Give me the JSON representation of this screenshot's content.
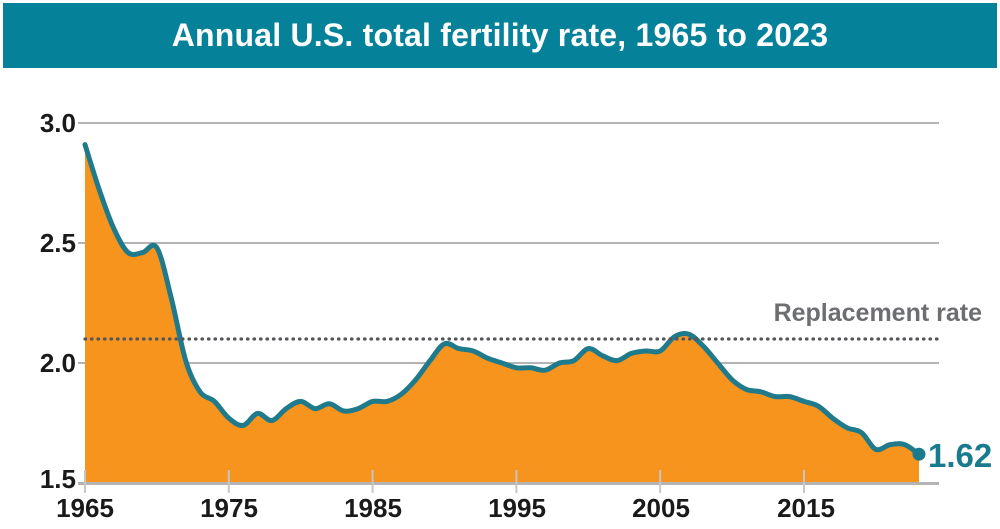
{
  "title": "Annual U.S. total fertility rate, 1965 to 2023",
  "colors": {
    "banner_teal": "#05829A",
    "line_teal": "#1F7A8B",
    "area_orange": "#F7941E",
    "grid_gray": "#B4B4B4",
    "tick_gray": "#C6C6C6",
    "dotted_gray": "#55565A",
    "label_gray": "#6D6E71",
    "axis_text": "#1A1A1A",
    "end_label_teal": "#1B7B8E"
  },
  "chart_data": {
    "type": "area",
    "title": "Annual U.S. total fertility rate, 1965 to 2023",
    "xlabel": "",
    "ylabel": "",
    "grid": true,
    "legend": false,
    "xlim": [
      1965,
      2023
    ],
    "ylim": [
      1.5,
      3.0
    ],
    "x": [
      1965,
      1966,
      1967,
      1968,
      1969,
      1970,
      1971,
      1972,
      1973,
      1974,
      1975,
      1976,
      1977,
      1978,
      1979,
      1980,
      1981,
      1982,
      1983,
      1984,
      1985,
      1986,
      1987,
      1988,
      1989,
      1990,
      1991,
      1992,
      1993,
      1994,
      1995,
      1996,
      1997,
      1998,
      1999,
      2000,
      2001,
      2002,
      2003,
      2004,
      2005,
      2006,
      2007,
      2008,
      2009,
      2010,
      2011,
      2012,
      2013,
      2014,
      2015,
      2016,
      2017,
      2018,
      2019,
      2020,
      2021,
      2022,
      2023
    ],
    "values": [
      2.91,
      2.72,
      2.56,
      2.46,
      2.46,
      2.48,
      2.27,
      2.01,
      1.88,
      1.84,
      1.77,
      1.74,
      1.79,
      1.76,
      1.81,
      1.84,
      1.81,
      1.83,
      1.8,
      1.81,
      1.84,
      1.84,
      1.87,
      1.93,
      2.01,
      2.08,
      2.06,
      2.05,
      2.02,
      2.0,
      1.98,
      1.98,
      1.97,
      2.0,
      2.01,
      2.06,
      2.03,
      2.01,
      2.04,
      2.05,
      2.05,
      2.11,
      2.12,
      2.07,
      2.0,
      1.93,
      1.89,
      1.88,
      1.86,
      1.86,
      1.84,
      1.82,
      1.77,
      1.73,
      1.71,
      1.64,
      1.66,
      1.66,
      1.62
    ],
    "yticks": [
      3.0,
      2.5,
      2.0,
      1.5
    ],
    "ytick_labels": [
      "3.0",
      "2.5",
      "2.0",
      "1.5"
    ],
    "xticks": [
      1965,
      1975,
      1985,
      1995,
      2005,
      2015
    ],
    "xtick_labels": [
      "1965",
      "1975",
      "1985",
      "1995",
      "2005",
      "2015"
    ],
    "annotations": {
      "replacement_rate": {
        "label": "Replacement rate",
        "value": 2.1
      },
      "end_value": {
        "label": "1.62",
        "value": 1.62,
        "year": 2023
      }
    }
  }
}
